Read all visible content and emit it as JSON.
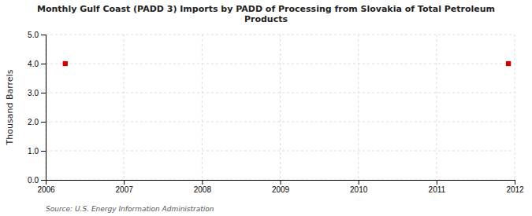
{
  "chart_data": {
    "type": "scatter",
    "title": "Monthly Gulf Coast (PADD 3) Imports by PADD of Processing from Slovakia of Total Petroleum\nProducts",
    "ylabel": "Thousand Barrels",
    "source": "Source: U.S. Energy Information Administration",
    "x": [
      2006.25,
      2011.92
    ],
    "values": [
      4.0,
      4.0
    ],
    "color": "#cc0000",
    "marker": "square",
    "xlim": [
      2006.0,
      2012.0
    ],
    "ylim": [
      0.0,
      5.0
    ],
    "xticks": [
      2006,
      2007,
      2008,
      2009,
      2010,
      2011,
      2012
    ],
    "yticks": [
      {
        "value": 0.0,
        "label": "0.0"
      },
      {
        "value": 1.0,
        "label": "1.0"
      },
      {
        "value": 2.0,
        "label": "2.0"
      },
      {
        "value": 3.0,
        "label": "3.0"
      },
      {
        "value": 4.0,
        "label": "4.0"
      },
      {
        "value": 5.0,
        "label": "5.0"
      }
    ],
    "grid": true
  }
}
